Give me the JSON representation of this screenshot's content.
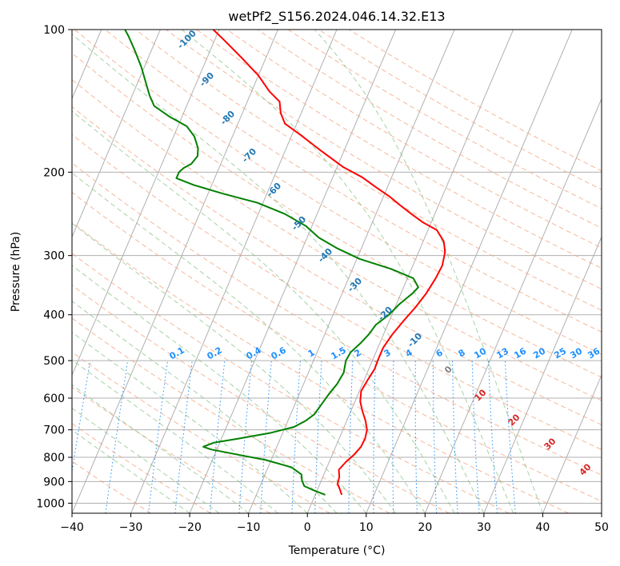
{
  "chart_data": {
    "type": "line",
    "subtype": "skew-t log-p",
    "title": "wetPf2_S156.2024.046.14.32.E13",
    "xlabel": "Temperature (°C)",
    "ylabel": "Pressure (hPa)",
    "xlim": [
      -40,
      50
    ],
    "ylim": [
      1050,
      100
    ],
    "y_scale": "log",
    "grid": true,
    "x_ticks": [
      -40,
      -30,
      -20,
      -10,
      0,
      10,
      20,
      30,
      40,
      50
    ],
    "x_tick_labels": [
      "−40",
      "−30",
      "−20",
      "−10",
      "0",
      "10",
      "20",
      "30",
      "40",
      "50"
    ],
    "y_ticks": [
      100,
      200,
      300,
      400,
      500,
      600,
      700,
      800,
      900,
      1000
    ],
    "y_tick_labels": [
      "100",
      "200",
      "300",
      "400",
      "500",
      "600",
      "700",
      "800",
      "900",
      "1000"
    ],
    "series": [
      {
        "color": "#ff0000",
        "points": [
          [
            960,
            4.5
          ],
          [
            935,
            3.8
          ],
          [
            910,
            3.0
          ],
          [
            880,
            2.8
          ],
          [
            850,
            2.2
          ],
          [
            820,
            2.8
          ],
          [
            790,
            3.7
          ],
          [
            760,
            4.3
          ],
          [
            730,
            4.4
          ],
          [
            700,
            4.1
          ],
          [
            670,
            3.2
          ],
          [
            640,
            2.0
          ],
          [
            610,
            0.9
          ],
          [
            580,
            0.3
          ],
          [
            550,
            0.6
          ],
          [
            520,
            1.0
          ],
          [
            500,
            0.9
          ],
          [
            470,
            0.9
          ],
          [
            440,
            1.5
          ],
          [
            410,
            2.5
          ],
          [
            385,
            3.5
          ],
          [
            360,
            4.3
          ],
          [
            335,
            4.8
          ],
          [
            315,
            5.0
          ],
          [
            295,
            4.5
          ],
          [
            280,
            3.5
          ],
          [
            265,
            1.5
          ],
          [
            255,
            -1.5
          ],
          [
            245,
            -4.0
          ],
          [
            235,
            -6.5
          ],
          [
            225,
            -9.0
          ],
          [
            215,
            -12.0
          ],
          [
            205,
            -15.0
          ],
          [
            195,
            -19.0
          ],
          [
            180,
            -24.0
          ],
          [
            167,
            -28.5
          ],
          [
            158,
            -32.0
          ],
          [
            150,
            -33.5
          ],
          [
            142,
            -34.5
          ],
          [
            135,
            -37.0
          ],
          [
            125,
            -40.0
          ],
          [
            115,
            -44.0
          ],
          [
            105,
            -48.5
          ],
          [
            100,
            -51.0
          ]
        ]
      },
      {
        "color": "#008000",
        "points": [
          [
            960,
            1.7
          ],
          [
            940,
            -0.5
          ],
          [
            920,
            -2.5
          ],
          [
            895,
            -3.3
          ],
          [
            870,
            -3.8
          ],
          [
            840,
            -6.0
          ],
          [
            810,
            -11.0
          ],
          [
            790,
            -16.0
          ],
          [
            770,
            -21.0
          ],
          [
            760,
            -22.5
          ],
          [
            745,
            -21.0
          ],
          [
            730,
            -17.0
          ],
          [
            710,
            -12.0
          ],
          [
            690,
            -8.5
          ],
          [
            670,
            -7.0
          ],
          [
            650,
            -6.0
          ],
          [
            620,
            -5.5
          ],
          [
            590,
            -5.0
          ],
          [
            560,
            -4.3
          ],
          [
            530,
            -4.0
          ],
          [
            500,
            -4.5
          ],
          [
            480,
            -4.3
          ],
          [
            460,
            -3.3
          ],
          [
            440,
            -2.5
          ],
          [
            420,
            -2.0
          ],
          [
            400,
            -0.5
          ],
          [
            380,
            0.5
          ],
          [
            360,
            2.0
          ],
          [
            350,
            2.5
          ],
          [
            335,
            1.0
          ],
          [
            320,
            -3.5
          ],
          [
            305,
            -9.5
          ],
          [
            290,
            -14.0
          ],
          [
            275,
            -18.0
          ],
          [
            260,
            -21.0
          ],
          [
            245,
            -25.5
          ],
          [
            232,
            -31.0
          ],
          [
            222,
            -37.5
          ],
          [
            213,
            -43.0
          ],
          [
            206,
            -46.5
          ],
          [
            200,
            -46.5
          ],
          [
            196,
            -46.0
          ],
          [
            192,
            -45.0
          ],
          [
            185,
            -44.5
          ],
          [
            178,
            -45.0
          ],
          [
            168,
            -46.5
          ],
          [
            160,
            -48.5
          ],
          [
            153,
            -52.0
          ],
          [
            145,
            -55.5
          ],
          [
            138,
            -57.0
          ],
          [
            130,
            -58.5
          ],
          [
            120,
            -60.5
          ],
          [
            110,
            -63.0
          ],
          [
            103,
            -65.0
          ],
          [
            100,
            -66.0
          ]
        ]
      }
    ],
    "dry_adiabat_labels": [
      "-100",
      "-90",
      "-80",
      "-70",
      "-60",
      "-50",
      "-40",
      "-30",
      "-20",
      "-10"
    ],
    "mixing_ratio_labels": [
      "0.1",
      "0.2",
      "0.4",
      "0.6",
      "1",
      "1.5",
      "2",
      "3",
      "4",
      "6",
      "8",
      "10",
      "13",
      "16",
      "20",
      "25",
      "30",
      "36"
    ],
    "moist_adiabat_labels": [
      "0",
      "10",
      "20",
      "30",
      "40"
    ]
  }
}
